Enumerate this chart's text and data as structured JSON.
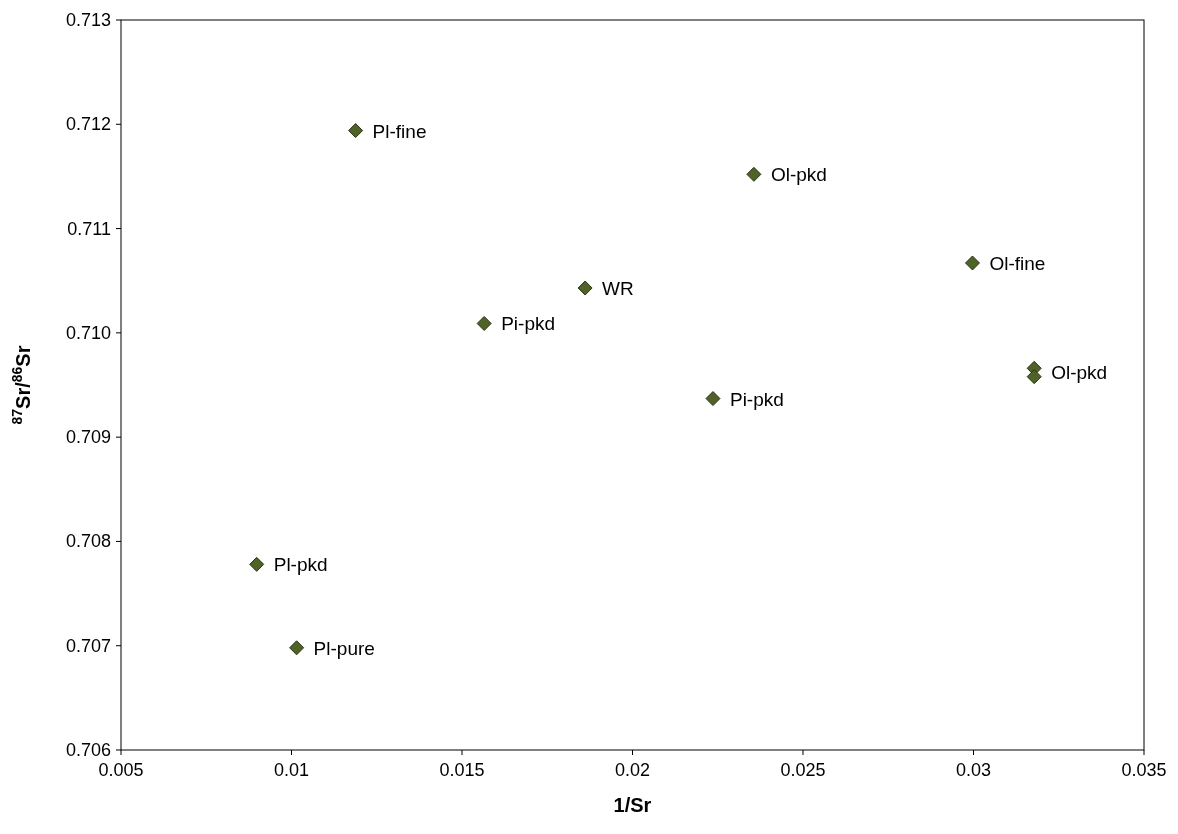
{
  "chart_data": {
    "type": "scatter",
    "xlabel": "1/Sr",
    "ylabel": "$^{87}$Sr/$^{86}$Sr",
    "x": [
      0.01188,
      0.02356,
      0.02997,
      0.01861,
      0.01565,
      0.03178,
      0.03178,
      0.02236,
      0.00898,
      0.01015
    ],
    "values": [
      0.71194,
      0.71152,
      0.71067,
      0.71043,
      0.71009,
      0.70966,
      0.70958,
      0.70937,
      0.70778,
      0.70698
    ],
    "color": "#4f6228",
    "marker": "diamond",
    "grid": false,
    "xlim": [
      0.005,
      0.035
    ],
    "xticks": [
      0.005,
      0.01,
      0.015,
      0.02,
      0.025,
      0.03,
      0.035
    ],
    "ylim": [
      0.706,
      0.713
    ],
    "yticks": [
      0.706,
      0.707,
      0.708,
      0.709,
      {
        "value": 0.71,
        "label": "0.710"
      },
      0.711,
      0.712,
      0.713
    ],
    "annotations": [
      {
        "text": "Pl-fine",
        "x": 0.01188,
        "y": 0.71194
      },
      {
        "text": "Ol-pkd",
        "x": 0.02356,
        "y": 0.71152
      },
      {
        "text": "Ol-fine",
        "x": 0.02997,
        "y": 0.71067
      },
      {
        "text": "WR",
        "x": 0.01861,
        "y": 0.71043
      },
      {
        "text": "Pi-pkd",
        "x": 0.01565,
        "y": 0.71009
      },
      {
        "text": "Ol-pkd",
        "x": 0.03178,
        "y": 0.70962
      },
      {
        "text": "Pi-pkd",
        "x": 0.02236,
        "y": 0.70937
      },
      {
        "text": "Pl-pkd",
        "x": 0.00898,
        "y": 0.70778
      },
      {
        "text": "Pl-pure",
        "x": 0.01015,
        "y": 0.70698
      }
    ]
  }
}
